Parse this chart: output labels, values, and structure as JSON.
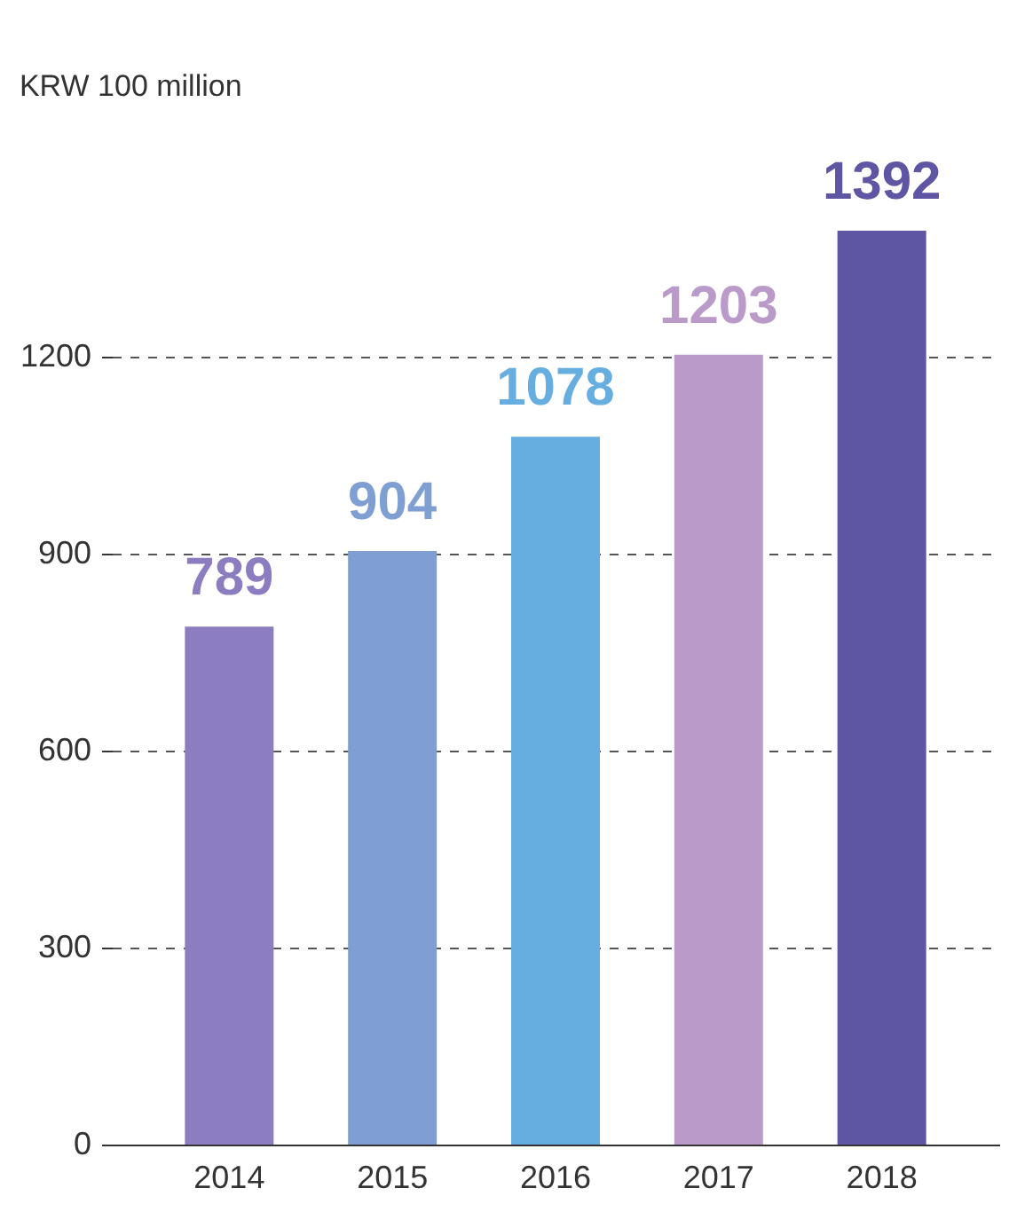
{
  "chart_data": {
    "type": "bar",
    "ylabel": "KRW 100 million",
    "categories": [
      "2014",
      "2015",
      "2016",
      "2017",
      "2018"
    ],
    "values": [
      789,
      904,
      1078,
      1203,
      1392
    ],
    "colors": [
      "#8b7dbf",
      "#7f9fd3",
      "#67aee0",
      "#b99ac9",
      "#5e55a3"
    ],
    "ylim": [
      0,
      1400
    ],
    "yticks": [
      0,
      300,
      600,
      900,
      1200
    ],
    "grid": "y",
    "data_labels": true
  }
}
